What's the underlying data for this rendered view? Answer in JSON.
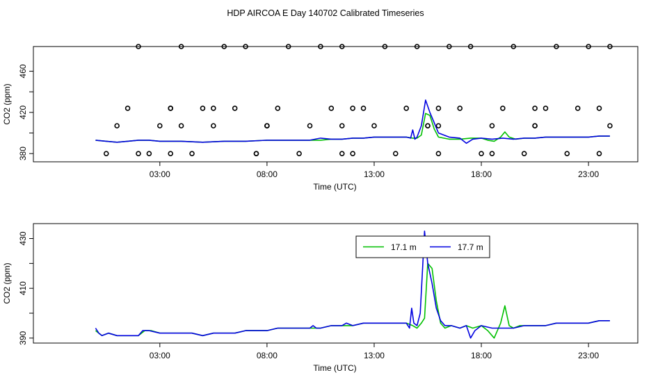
{
  "title": "HDP AIRCOA E  Day 140702  Calibrated Timeseries",
  "colors": {
    "green": "#00c000",
    "blue": "#0000e0",
    "axis": "#000000"
  },
  "chart_data": [
    {
      "type": "line",
      "title": "",
      "xlabel": "Time (UTC)",
      "ylabel": "CO2 (ppm)",
      "xlim": [
        -2.9,
        25.3
      ],
      "ylim": [
        372,
        484
      ],
      "xticks": [
        3,
        8,
        13,
        18,
        23
      ],
      "xtick_labels": [
        "03:00",
        "08:00",
        "13:00",
        "18:00",
        "23:00"
      ],
      "yticks": [
        380,
        400,
        420,
        440,
        460
      ],
      "ytick_labels": [
        "380",
        "",
        "420",
        "",
        "460"
      ],
      "series": [
        {
          "name": "17.1 m",
          "color": "#00c000",
          "x": [
            0.0,
            0.5,
            1.0,
            1.5,
            2.0,
            2.5,
            3.0,
            4.0,
            5.0,
            6.0,
            7.0,
            8.0,
            9.0,
            10.0,
            10.5,
            11.0,
            11.5,
            12.0,
            12.5,
            13.0,
            13.5,
            14.0,
            14.5,
            14.8,
            15.0,
            15.2,
            15.4,
            15.6,
            15.8,
            16.0,
            16.5,
            17.0,
            17.5,
            18.0,
            18.3,
            18.6,
            18.9,
            19.1,
            19.3,
            19.6,
            20.0,
            20.5,
            21.0,
            21.5,
            22.0,
            22.5,
            23.0,
            23.5,
            24.0
          ],
          "y": [
            393,
            392,
            391,
            392,
            393,
            393,
            392,
            392,
            391,
            392,
            392,
            393,
            393,
            393,
            393,
            394,
            394,
            395,
            395,
            396,
            396,
            396,
            396,
            395,
            395,
            398,
            419,
            417,
            404,
            396,
            394,
            394,
            395,
            395,
            393,
            392,
            396,
            401,
            396,
            394,
            395,
            395,
            396,
            396,
            396,
            396,
            396,
            397,
            397
          ]
        },
        {
          "name": "17.7 m",
          "color": "#0000e0",
          "x": [
            0.0,
            0.5,
            1.0,
            1.5,
            2.0,
            2.5,
            3.0,
            4.0,
            5.0,
            6.0,
            7.0,
            8.0,
            9.0,
            10.0,
            10.5,
            11.0,
            11.5,
            12.0,
            12.5,
            13.0,
            13.5,
            14.0,
            14.5,
            14.7,
            14.8,
            14.9,
            15.0,
            15.2,
            15.4,
            15.6,
            15.8,
            16.0,
            16.5,
            17.0,
            17.3,
            17.6,
            18.0,
            18.5,
            19.0,
            19.5,
            20.0,
            20.5,
            21.0,
            21.5,
            22.0,
            22.5,
            23.0,
            23.5,
            24.0
          ],
          "y": [
            393,
            392,
            391,
            392,
            393,
            393,
            392,
            392,
            391,
            392,
            392,
            393,
            393,
            393,
            395,
            394,
            394,
            395,
            395,
            396,
            396,
            396,
            396,
            395,
            403,
            394,
            396,
            407,
            432,
            420,
            410,
            400,
            396,
            395,
            390,
            394,
            395,
            394,
            395,
            394,
            395,
            395,
            396,
            396,
            396,
            396,
            396,
            397,
            397
          ]
        }
      ],
      "flag_points": {
        "x": [
          0.5,
          1.0,
          1.5,
          2.0,
          2.5,
          3.0,
          3.5,
          4.0,
          4.5,
          5.0,
          5.5,
          6.0,
          6.5,
          7.0,
          7.5,
          8.0,
          8.5,
          9.0,
          9.5,
          10.0,
          10.5,
          11.0,
          11.5,
          12.0,
          12.5,
          13.0,
          13.5,
          14.0,
          14.5,
          15.0,
          15.5,
          16.0,
          16.5,
          17.0,
          17.5,
          18.0,
          18.5,
          19.0,
          19.5,
          20.0,
          20.5,
          21.0,
          21.5,
          22.0,
          22.5,
          23.0,
          23.5,
          24.0,
          2.0,
          4.0,
          5.5,
          8.0,
          11.5,
          12.0,
          15.5,
          16.0,
          20.5,
          23.5,
          24.0,
          3.5,
          7.5,
          11.5,
          16.0,
          18.5,
          20.5,
          3.5,
          8.0
        ],
        "y": [
          380,
          407,
          424,
          484,
          380,
          407,
          424,
          484,
          380,
          424,
          407,
          484,
          424,
          484,
          380,
          407,
          424,
          484,
          380,
          407,
          484,
          424,
          484,
          380,
          424,
          407,
          484,
          380,
          424,
          484,
          407,
          380,
          484,
          424,
          484,
          380,
          407,
          424,
          484,
          380,
          407,
          424,
          484,
          380,
          424,
          484,
          380,
          407,
          380,
          407,
          424,
          407,
          380,
          424,
          407,
          424,
          407,
          424,
          484,
          380,
          380,
          407,
          407,
          380,
          424,
          424,
          407
        ]
      }
    },
    {
      "type": "line",
      "title": "",
      "xlabel": "Time (UTC)",
      "ylabel": "CO2 (ppm)",
      "xlim": [
        -2.9,
        25.3
      ],
      "ylim": [
        388,
        436
      ],
      "xticks": [
        3,
        8,
        13,
        18,
        23
      ],
      "xtick_labels": [
        "03:00",
        "08:00",
        "13:00",
        "18:00",
        "23:00"
      ],
      "yticks": [
        390,
        400,
        410,
        420,
        430
      ],
      "ytick_labels": [
        "390",
        "",
        "410",
        "",
        "430"
      ],
      "legend": {
        "position": "top-center",
        "entries": [
          "17.1 m",
          "17.7 m"
        ]
      },
      "series": [
        {
          "name": "17.1 m",
          "color": "#00c000",
          "x": [
            0.0,
            0.3,
            0.6,
            1.0,
            1.5,
            2.0,
            2.3,
            2.6,
            3.0,
            3.5,
            4.0,
            4.5,
            5.0,
            5.5,
            6.0,
            6.5,
            7.0,
            7.5,
            8.0,
            8.5,
            9.0,
            9.5,
            10.0,
            10.5,
            11.0,
            11.5,
            12.0,
            12.5,
            13.0,
            13.5,
            14.0,
            14.5,
            14.8,
            15.0,
            15.2,
            15.35,
            15.5,
            15.7,
            15.9,
            16.1,
            16.3,
            16.6,
            17.0,
            17.3,
            17.6,
            18.0,
            18.3,
            18.6,
            18.9,
            19.1,
            19.3,
            19.5,
            19.8,
            20.0,
            20.5,
            21.0,
            21.5,
            22.0,
            22.5,
            23.0,
            23.5,
            24.0
          ],
          "y": [
            393,
            391,
            392,
            391,
            391,
            391,
            393,
            393,
            392,
            392,
            392,
            392,
            391,
            392,
            392,
            392,
            393,
            393,
            393,
            394,
            394,
            394,
            394,
            394,
            395,
            395,
            395,
            396,
            396,
            396,
            396,
            396,
            395,
            394,
            396,
            398,
            420,
            418,
            405,
            396,
            394,
            395,
            394,
            395,
            394,
            395,
            393,
            390,
            396,
            403,
            395,
            394,
            395,
            395,
            395,
            395,
            396,
            396,
            396,
            396,
            397,
            397
          ]
        },
        {
          "name": "17.7 m",
          "color": "#0000e0",
          "x": [
            0.0,
            0.15,
            0.3,
            0.6,
            1.0,
            1.5,
            2.0,
            2.2,
            2.5,
            3.0,
            3.5,
            4.0,
            4.5,
            5.0,
            5.5,
            6.0,
            6.5,
            7.0,
            7.5,
            8.0,
            8.5,
            9.0,
            9.5,
            10.0,
            10.15,
            10.3,
            10.5,
            11.0,
            11.5,
            11.7,
            12.0,
            12.5,
            13.0,
            13.5,
            14.0,
            14.5,
            14.65,
            14.75,
            14.85,
            15.0,
            15.15,
            15.35,
            15.5,
            15.7,
            15.9,
            16.1,
            16.3,
            16.6,
            17.0,
            17.3,
            17.5,
            17.7,
            18.0,
            18.5,
            19.0,
            19.5,
            20.0,
            20.5,
            21.0,
            21.5,
            22.0,
            22.5,
            23.0,
            23.5,
            24.0
          ],
          "y": [
            394,
            392,
            391,
            392,
            391,
            391,
            391,
            393,
            393,
            392,
            392,
            392,
            392,
            391,
            392,
            392,
            392,
            393,
            393,
            393,
            394,
            394,
            394,
            394,
            395,
            394,
            394,
            395,
            395,
            396,
            395,
            396,
            396,
            396,
            396,
            396,
            394,
            402,
            396,
            395,
            400,
            433,
            420,
            412,
            402,
            397,
            395,
            395,
            394,
            395,
            390,
            393,
            395,
            394,
            394,
            394,
            395,
            395,
            395,
            396,
            396,
            396,
            396,
            397,
            397
          ]
        }
      ]
    }
  ]
}
